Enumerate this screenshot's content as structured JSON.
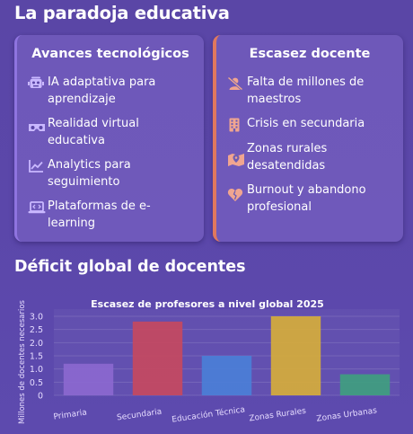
{
  "header": {
    "title": "La paradoja educativa"
  },
  "left_card": {
    "title": "Avances tecnológicos",
    "items": [
      {
        "icon": "robot-icon",
        "line1": "IA adaptativa para",
        "line2": "aprendizaje"
      },
      {
        "icon": "vr-headset-icon",
        "line1": "Realidad virtual",
        "line2": "educativa"
      },
      {
        "icon": "line-chart-icon",
        "line1": "Analytics para",
        "line2": "seguimiento"
      },
      {
        "icon": "laptop-code-icon",
        "line1": "Plataformas de e-",
        "line2": "learning"
      }
    ]
  },
  "right_card": {
    "title": "Escasez docente",
    "items": [
      {
        "icon": "teacher-slash-icon",
        "line1": "Falta de millones de",
        "line2": "maestros"
      },
      {
        "icon": "building-icon",
        "line1": "Crisis en secundaria",
        "line2": ""
      },
      {
        "icon": "map-marker-icon",
        "line1": "Zonas rurales",
        "line2": "desatendidas"
      },
      {
        "icon": "broken-heart-icon",
        "line1": "Burnout y abandono",
        "line2": "profesional"
      }
    ]
  },
  "section": {
    "title": "Déficit global de docentes"
  },
  "colors": {
    "accent_left": "#8f74e0",
    "accent_right": "#e0785e"
  },
  "chart_data": {
    "type": "bar",
    "title": "Escasez de profesores a nivel global 2025",
    "xlabel": "",
    "ylabel": "Millones de docentes necesarios",
    "ylim": [
      0,
      3.0
    ],
    "yticks": [
      0,
      0.5,
      1.0,
      1.5,
      2.0,
      2.5,
      3.0
    ],
    "ytick_labels": [
      "0",
      "0.5",
      "1.0",
      "1.5",
      "2.0",
      "2.5",
      "3.0"
    ],
    "categories": [
      "Primaria",
      "Secundaria",
      "Educación Técnica",
      "Zonas Rurales",
      "Zonas Urbanas"
    ],
    "values": [
      1.2,
      2.8,
      1.5,
      3.0,
      0.8
    ],
    "colors": [
      "#8c68d0",
      "#c8485e",
      "#4a80d8",
      "#d8ae38",
      "#3ea07e"
    ],
    "grid": true,
    "legend": false
  }
}
